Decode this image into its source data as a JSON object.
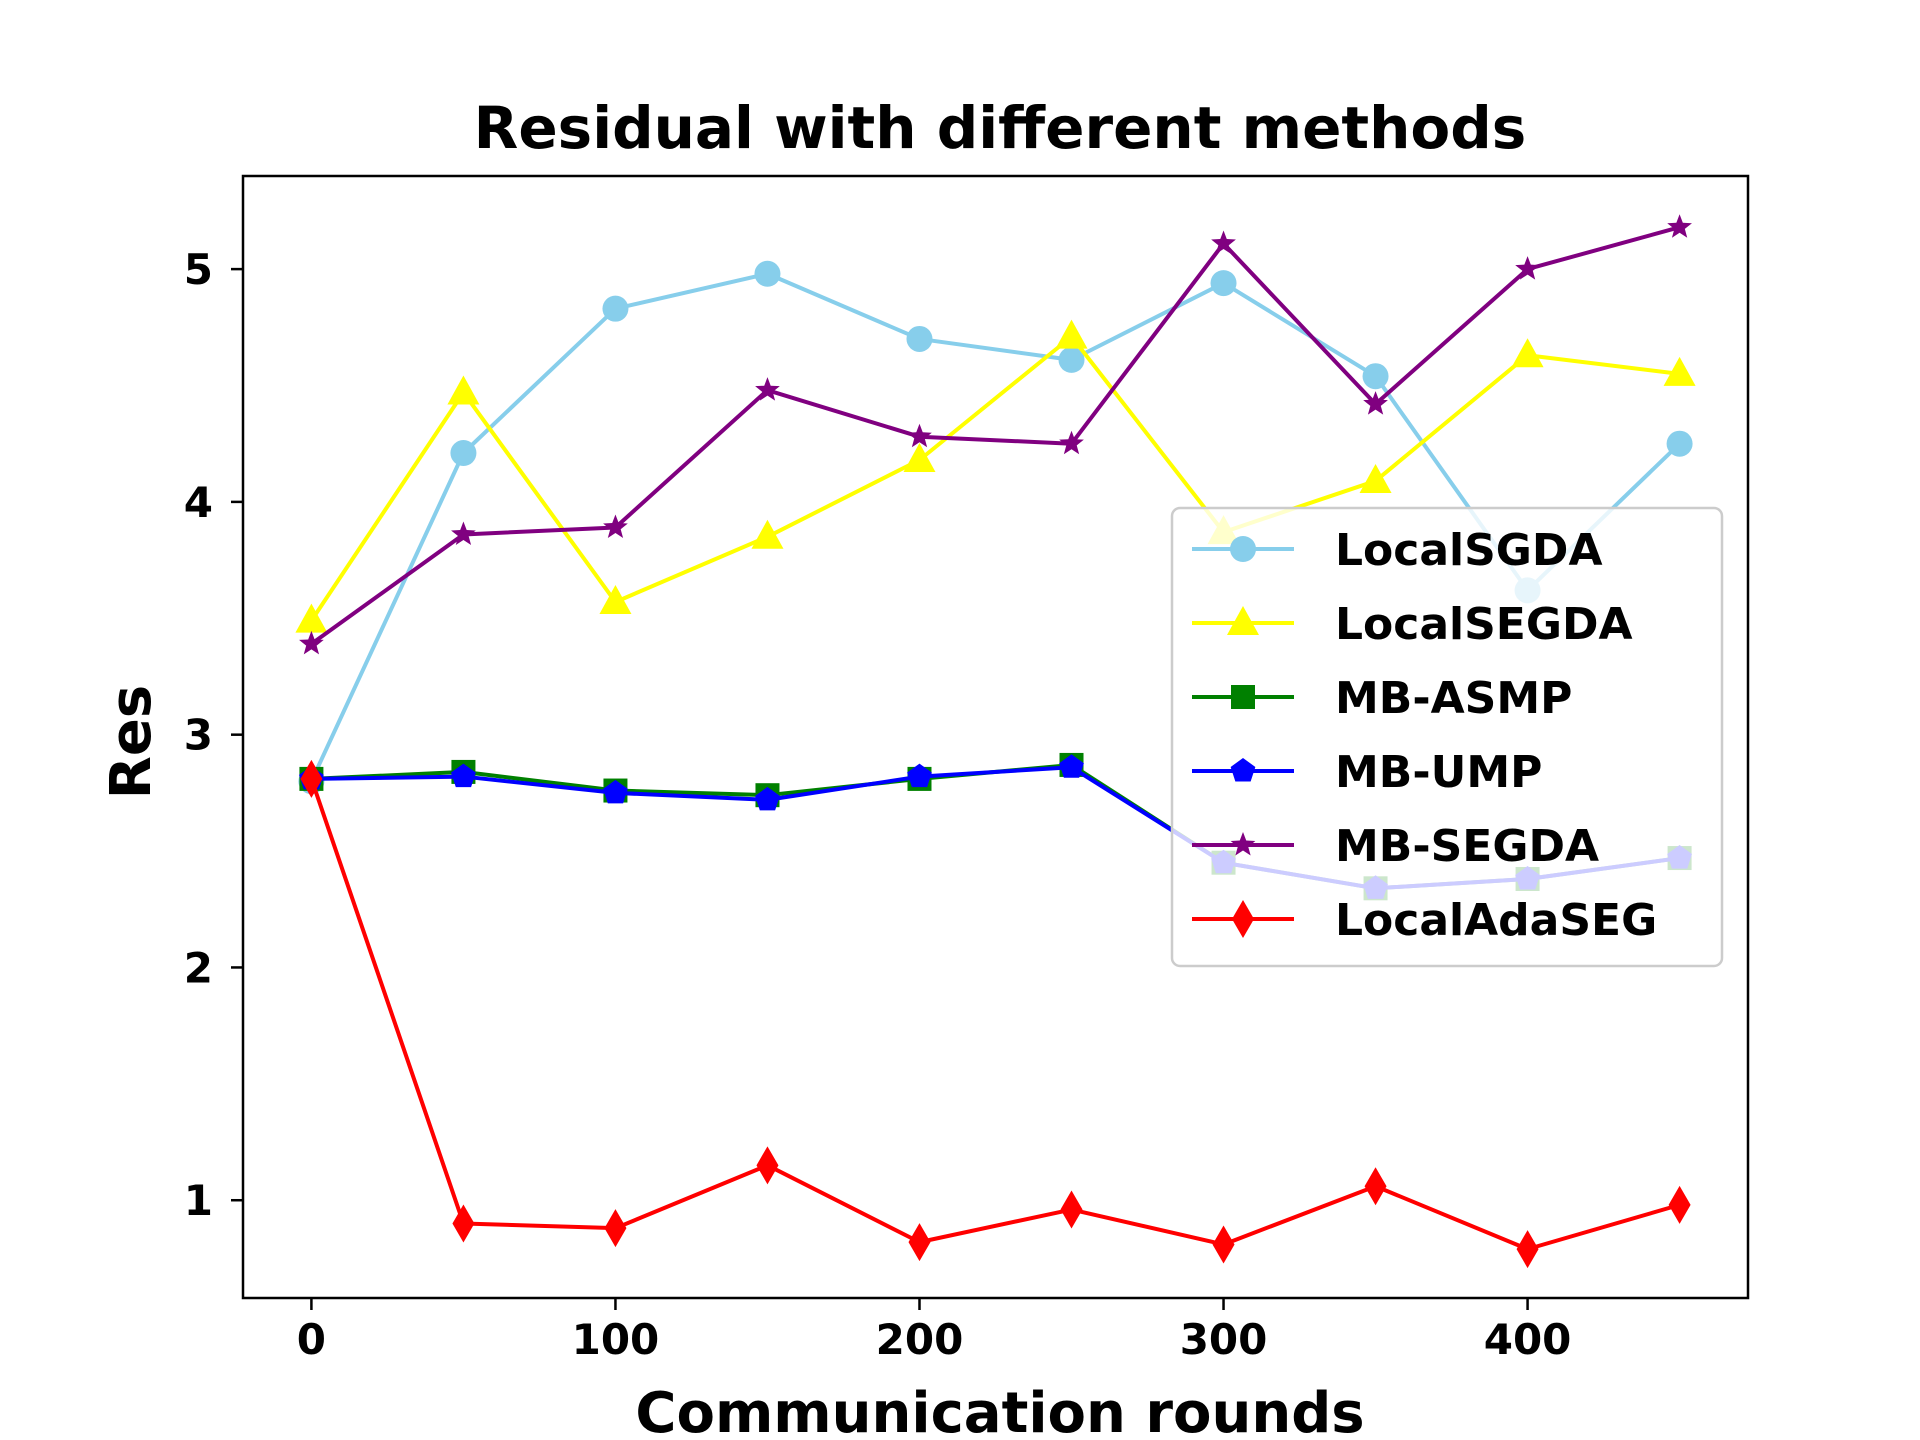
{
  "chart_data": {
    "type": "line",
    "title": "Residual with different methods",
    "xlabel": "Communication rounds",
    "ylabel": "Res",
    "xlim": [
      -22.5,
      472.5
    ],
    "ylim": [
      0.58,
      5.4
    ],
    "xticks": [
      0,
      100,
      200,
      300,
      400
    ],
    "yticks": [
      1,
      2,
      3,
      4,
      5
    ],
    "legend_position": "center-right",
    "x": [
      0,
      50,
      100,
      150,
      200,
      250,
      300,
      350,
      400,
      450
    ],
    "series": [
      {
        "name": "LocalSGDA",
        "color": "#87ceeb",
        "marker": "circle",
        "values": [
          2.8,
          4.21,
          4.83,
          4.98,
          4.7,
          4.61,
          4.94,
          4.54,
          3.62,
          4.25
        ]
      },
      {
        "name": "LocalSEGDA",
        "color": "#ffff00",
        "marker": "triangle",
        "values": [
          3.49,
          4.47,
          3.57,
          3.85,
          4.18,
          4.71,
          3.87,
          4.09,
          4.63,
          4.55
        ]
      },
      {
        "name": "MB-ASMP",
        "color": "#008000",
        "marker": "square",
        "values": [
          2.81,
          2.84,
          2.76,
          2.74,
          2.81,
          2.87,
          2.45,
          2.34,
          2.38,
          2.47
        ]
      },
      {
        "name": "MB-UMP",
        "color": "#0000ff",
        "marker": "pentagon",
        "values": [
          2.81,
          2.82,
          2.75,
          2.72,
          2.82,
          2.86,
          2.45,
          2.34,
          2.38,
          2.47
        ]
      },
      {
        "name": "MB-SEGDA",
        "color": "#800080",
        "marker": "star",
        "values": [
          3.39,
          3.86,
          3.89,
          4.48,
          4.28,
          4.25,
          5.11,
          4.42,
          5.0,
          5.18
        ]
      },
      {
        "name": "LocalAdaSEG",
        "color": "#ff0000",
        "marker": "diamond",
        "values": [
          2.81,
          0.9,
          0.88,
          1.15,
          0.82,
          0.96,
          0.81,
          1.06,
          0.79,
          0.98
        ]
      }
    ],
    "overlay_note_color": "#c8c8f5"
  }
}
